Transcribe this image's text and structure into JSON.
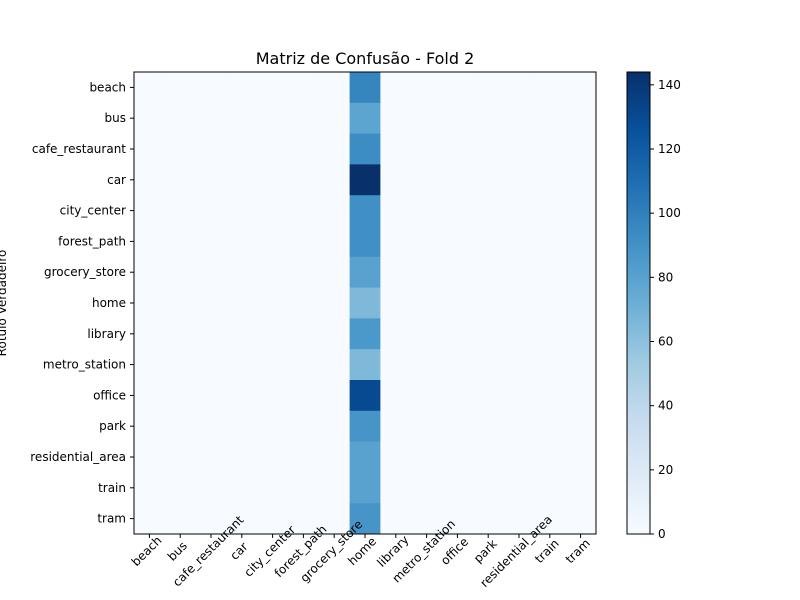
{
  "chart_data": {
    "type": "heatmap",
    "title": "Matriz de Confusão - Fold 2",
    "ylabel": "Rótulo Verdadeiro",
    "xlabel": "",
    "rows": [
      "beach",
      "bus",
      "cafe_restaurant",
      "car",
      "city_center",
      "forest_path",
      "grocery_store",
      "home",
      "library",
      "metro_station",
      "office",
      "park",
      "residential_area",
      "train",
      "tram"
    ],
    "cols": [
      "beach",
      "bus",
      "cafe_restaurant",
      "car",
      "city_center",
      "forest_path",
      "grocery_store",
      "home",
      "library",
      "metro_station",
      "office",
      "park",
      "residential_area",
      "train",
      "tram"
    ],
    "values": [
      [
        0,
        0,
        0,
        0,
        0,
        0,
        0,
        97,
        0,
        0,
        0,
        0,
        0,
        0,
        0
      ],
      [
        0,
        0,
        0,
        0,
        0,
        0,
        0,
        78,
        0,
        0,
        0,
        0,
        0,
        0,
        0
      ],
      [
        0,
        0,
        0,
        0,
        0,
        0,
        0,
        93,
        0,
        0,
        0,
        0,
        0,
        0,
        0
      ],
      [
        0,
        0,
        0,
        0,
        0,
        0,
        0,
        144,
        0,
        0,
        0,
        0,
        0,
        0,
        0
      ],
      [
        0,
        0,
        0,
        0,
        0,
        0,
        0,
        91,
        0,
        0,
        0,
        0,
        0,
        0,
        0
      ],
      [
        0,
        0,
        0,
        0,
        0,
        0,
        0,
        91,
        0,
        0,
        0,
        0,
        0,
        0,
        0
      ],
      [
        0,
        0,
        0,
        0,
        0,
        0,
        0,
        80,
        0,
        0,
        0,
        0,
        0,
        0,
        0
      ],
      [
        0,
        0,
        0,
        0,
        0,
        0,
        0,
        65,
        0,
        0,
        0,
        0,
        0,
        0,
        0
      ],
      [
        0,
        0,
        0,
        0,
        0,
        0,
        0,
        86,
        0,
        0,
        0,
        0,
        0,
        0,
        0
      ],
      [
        0,
        0,
        0,
        0,
        0,
        0,
        0,
        65,
        0,
        0,
        0,
        0,
        0,
        0,
        0
      ],
      [
        0,
        0,
        0,
        0,
        0,
        0,
        0,
        130,
        0,
        0,
        0,
        0,
        0,
        0,
        0
      ],
      [
        0,
        0,
        0,
        0,
        0,
        0,
        0,
        88,
        0,
        0,
        0,
        0,
        0,
        0,
        0
      ],
      [
        0,
        0,
        0,
        0,
        0,
        0,
        0,
        80,
        0,
        0,
        0,
        0,
        0,
        0,
        0
      ],
      [
        0,
        0,
        0,
        0,
        0,
        0,
        0,
        80,
        0,
        0,
        0,
        0,
        0,
        0,
        0
      ],
      [
        0,
        0,
        0,
        0,
        0,
        0,
        0,
        88,
        0,
        0,
        0,
        0,
        0,
        0,
        0
      ]
    ],
    "colorbar": {
      "min": 0,
      "max": 144,
      "ticks": [
        0,
        20,
        40,
        60,
        80,
        100,
        120,
        140
      ]
    },
    "colormap": "Blues",
    "colormap_stops": [
      "#f7fbff",
      "#deebf7",
      "#c6dbef",
      "#9ecae1",
      "#6baed6",
      "#4292c6",
      "#2171b5",
      "#08519c",
      "#08306b"
    ],
    "grid": false
  }
}
